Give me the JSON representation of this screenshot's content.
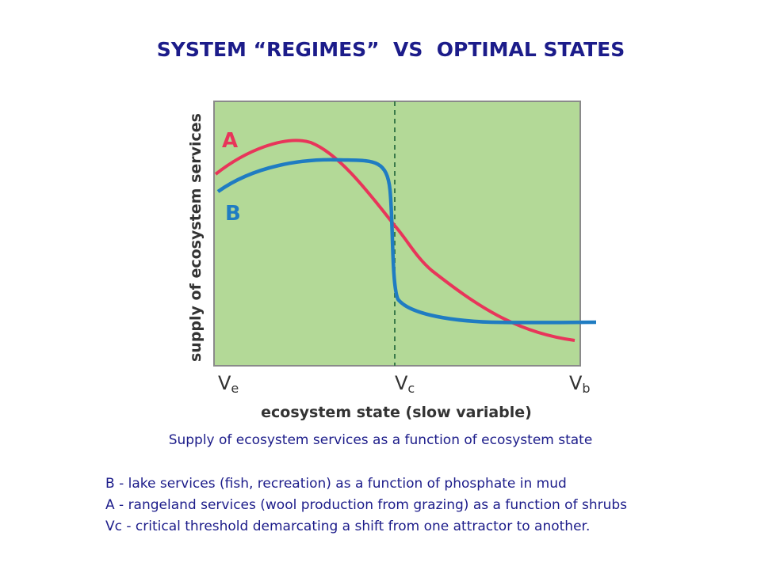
{
  "title": "SYSTEM “REGIMES”  VS  OPTIMAL STATES",
  "diagram": {
    "y_axis_label": "supply of ecosystem services",
    "x_axis_label": "ecosystem state (slow variable)",
    "x_ticks": [
      {
        "main": "V",
        "sub": "e"
      },
      {
        "main": "V",
        "sub": "c"
      },
      {
        "main": "V",
        "sub": "b"
      }
    ],
    "curve_labels": [
      "A",
      "B"
    ]
  },
  "caption": "Supply of ecosystem services as a function of ecosystem state",
  "notes": [
    "B - lake services (fish, recreation) as a function of phosphate in mud",
    "A - rangeland services (wool production from grazing) as a function of shrubs",
    "Vc - critical threshold demarcating a shift from one attractor to another."
  ]
}
